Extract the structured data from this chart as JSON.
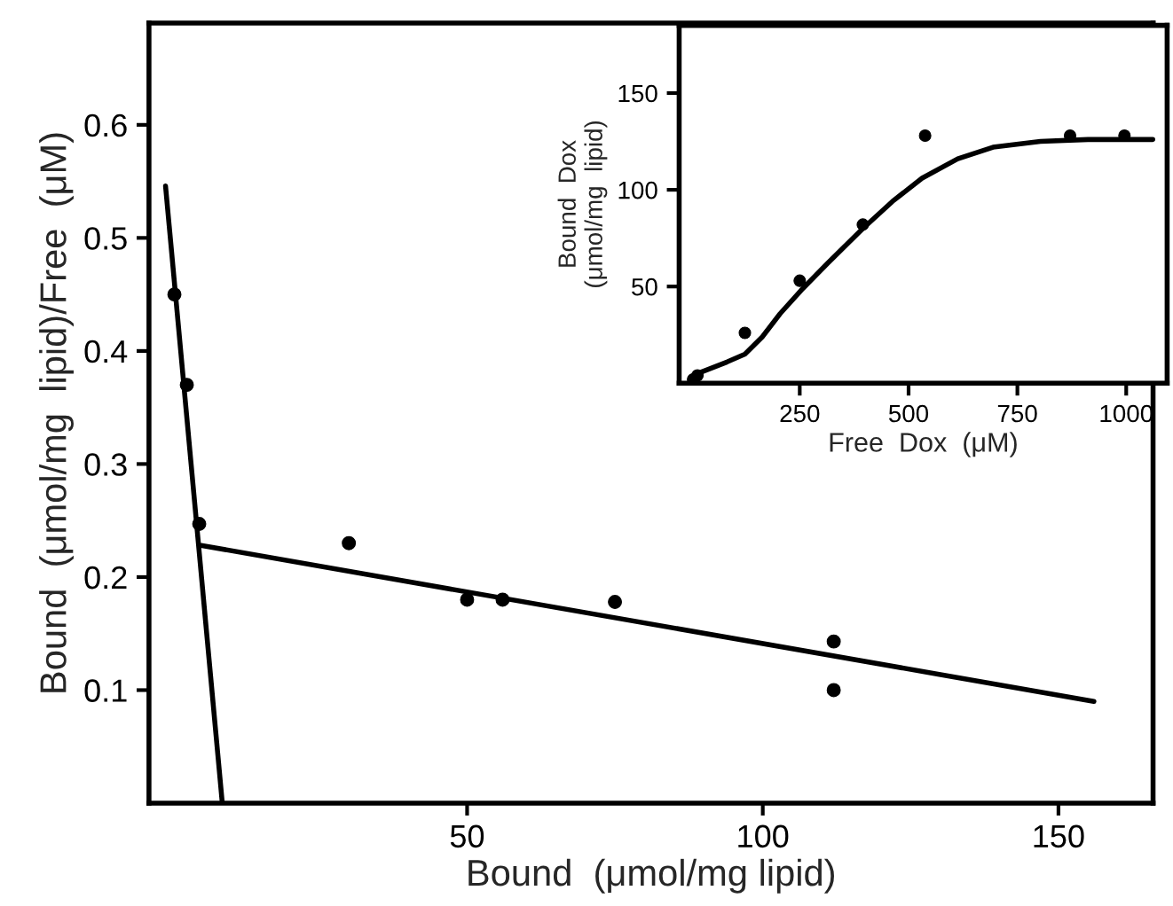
{
  "chart_data": [
    {
      "type": "scatter",
      "xlabel": "Bound  (μmol/mg lipid)",
      "ylabel": "Bound  (μmol/mg  lipid)/Free  (μM)",
      "xlim": [
        -3.8,
        166
      ],
      "ylim": [
        0,
        0.69
      ],
      "xticks": [
        50,
        100,
        150
      ],
      "yticks": [
        0.1,
        0.2,
        0.3,
        0.4,
        0.5,
        0.6
      ],
      "grid": false,
      "series": [
        {
          "marker": "circle",
          "color": "#000000",
          "x": [
            0.5,
            2.6,
            4.7,
            30,
            50,
            56,
            75,
            112,
            112
          ],
          "values": [
            0.45,
            0.37,
            0.247,
            0.23,
            0.18,
            0.18,
            0.178,
            0.143,
            0.1
          ]
        },
        {
          "type": "line",
          "marker": "none",
          "color": "#000000",
          "x": [
            -1,
            8.6
          ],
          "values": [
            0.546,
            0
          ]
        },
        {
          "type": "line",
          "marker": "none",
          "color": "#000000",
          "x": [
            5,
            156
          ],
          "values": [
            0.228,
            0.09
          ]
        }
      ]
    },
    {
      "type": "scatter",
      "xlabel": "Free  Dox  (μM)",
      "ylabel": "Bound  Dox\n(μmol/mg  lipid)",
      "xlim": [
        -27,
        1094
      ],
      "ylim": [
        0,
        185
      ],
      "xticks": [
        250,
        500,
        750,
        1000
      ],
      "yticks": [
        50,
        100,
        150
      ],
      "grid": false,
      "series": [
        {
          "marker": "circle",
          "color": "#000000",
          "x": [
            5,
            15,
            124,
            250,
            395,
            538,
            871,
            996
          ],
          "values": [
            2,
            4,
            26,
            53,
            82,
            128,
            128,
            128
          ]
        },
        {
          "type": "line",
          "marker": "none",
          "color": "#000000",
          "x": [
            0,
            15,
            83,
            124,
            164,
            205,
            253,
            314,
            395,
            463,
            531,
            613,
            694,
            803,
            912,
            1061
          ],
          "values": [
            1,
            5,
            11,
            15,
            24,
            36,
            48,
            62,
            80,
            94,
            106,
            116,
            122,
            125,
            126,
            126
          ]
        }
      ]
    }
  ]
}
